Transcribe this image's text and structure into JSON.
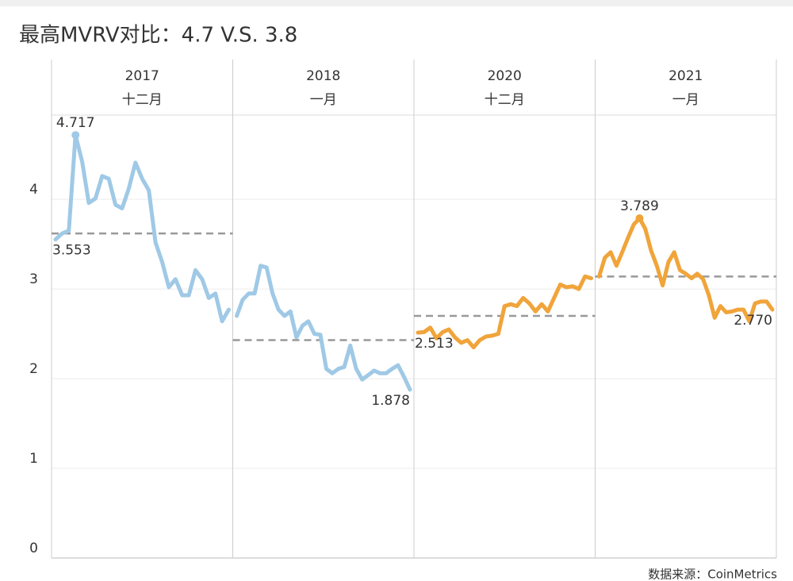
{
  "chart_data": {
    "type": "line",
    "title": "最高MVRV对比：4.7 V.S. 3.8",
    "source": "数据来源：CoinMetrics",
    "ylim": [
      0,
      4.94
    ],
    "yticks": [
      0,
      1,
      2,
      3,
      4
    ],
    "grid": true,
    "panels": [
      {
        "year": "2017",
        "month": "十二月",
        "color": "#9fc9e6",
        "average": 3.62,
        "values": [
          3.553,
          3.62,
          3.65,
          4.717,
          4.42,
          3.96,
          4.01,
          4.26,
          4.23,
          3.94,
          3.9,
          4.12,
          4.41,
          4.23,
          4.1,
          3.52,
          3.3,
          3.02,
          3.11,
          2.93,
          2.93,
          3.21,
          3.11,
          2.9,
          2.95,
          2.64,
          2.77
        ],
        "value_labels": [
          "3.553",
          null,
          null,
          "4.717",
          null,
          null,
          null,
          null,
          null,
          null,
          null,
          null,
          null,
          null,
          null,
          null,
          null,
          null,
          null,
          null,
          null,
          null,
          null,
          null,
          null,
          null,
          null
        ]
      },
      {
        "year": "2018",
        "month": "一月",
        "color": "#9fc9e6",
        "average": 2.43,
        "values": [
          2.7,
          2.88,
          2.95,
          2.95,
          3.26,
          3.24,
          2.95,
          2.77,
          2.7,
          2.75,
          2.46,
          2.59,
          2.64,
          2.5,
          2.49,
          2.11,
          2.06,
          2.11,
          2.13,
          2.37,
          2.11,
          1.99,
          2.04,
          2.09,
          2.06,
          2.06,
          2.11,
          2.15,
          2.02,
          1.878
        ],
        "value_labels": [
          null,
          null,
          null,
          null,
          null,
          null,
          null,
          null,
          null,
          null,
          null,
          null,
          null,
          null,
          null,
          null,
          null,
          null,
          null,
          null,
          null,
          null,
          null,
          null,
          null,
          null,
          null,
          null,
          null,
          "1.878"
        ]
      },
      {
        "year": "2020",
        "month": "十二月",
        "color": "#f0a43a",
        "average": 2.7,
        "values": [
          2.513,
          2.52,
          2.57,
          2.45,
          2.52,
          2.55,
          2.46,
          2.4,
          2.43,
          2.35,
          2.43,
          2.47,
          2.48,
          2.5,
          2.81,
          2.83,
          2.81,
          2.9,
          2.84,
          2.75,
          2.83,
          2.75,
          2.9,
          3.05,
          3.02,
          3.03,
          3.0,
          3.14,
          3.12
        ],
        "value_labels": [
          "2.513",
          null,
          null,
          null,
          null,
          null,
          null,
          null,
          null,
          null,
          null,
          null,
          null,
          null,
          null,
          null,
          null,
          null,
          null,
          null,
          null,
          null,
          null,
          null,
          null,
          null,
          null,
          null,
          null
        ]
      },
      {
        "year": "2021",
        "month": "一月",
        "color": "#f0a43a",
        "average": 3.14,
        "values": [
          3.14,
          3.35,
          3.41,
          3.26,
          3.41,
          3.57,
          3.72,
          3.789,
          3.67,
          3.43,
          3.26,
          3.04,
          3.3,
          3.41,
          3.21,
          3.17,
          3.12,
          3.17,
          3.11,
          2.93,
          2.68,
          2.81,
          2.74,
          2.75,
          2.77,
          2.77,
          2.64,
          2.84,
          2.86,
          2.86,
          2.77
        ],
        "value_labels": [
          null,
          null,
          null,
          null,
          null,
          null,
          null,
          "3.789",
          null,
          null,
          null,
          null,
          null,
          null,
          null,
          null,
          null,
          null,
          null,
          null,
          null,
          null,
          null,
          null,
          null,
          null,
          null,
          null,
          null,
          null,
          "2.770"
        ]
      }
    ]
  }
}
